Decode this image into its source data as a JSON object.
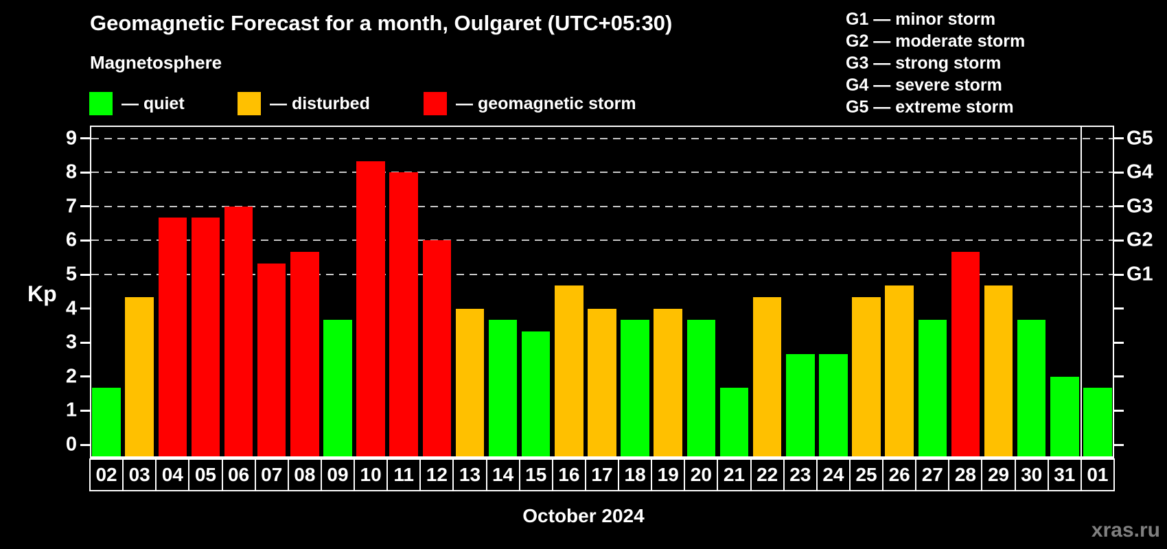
{
  "header": {
    "title": "Geomagnetic Forecast for a month, Oulgaret (UTC+05:30)",
    "subtitle": "Magnetosphere"
  },
  "legend": {
    "items": [
      {
        "key": "quiet",
        "label": "— quiet",
        "color": "#00ff00"
      },
      {
        "key": "disturbed",
        "label": "— disturbed",
        "color": "#ffc000"
      },
      {
        "key": "storm",
        "label": "— geomagnetic storm",
        "color": "#ff0000"
      }
    ]
  },
  "g_legend": [
    "G1 — minor storm",
    "G2 — moderate storm",
    "G3 — strong storm",
    "G4 — severe storm",
    "G5 — extreme storm"
  ],
  "footer": {
    "watermark": "xras.ru"
  },
  "chart_data": {
    "type": "bar",
    "title": "Geomagnetic Forecast for a month, Oulgaret (UTC+05:30)",
    "ylabel": "Kp",
    "xlabel": "October 2024",
    "ylim": [
      0,
      9.35
    ],
    "yticks": [
      0,
      1,
      2,
      3,
      4,
      5,
      6,
      7,
      8,
      9
    ],
    "gridlines_at_kp": [
      5,
      6,
      7,
      8,
      9
    ],
    "grid": "dashed horizontal at storm levels only",
    "legend_position": "top",
    "right_axis": [
      {
        "label": "G1",
        "kp": 5
      },
      {
        "label": "G2",
        "kp": 6
      },
      {
        "label": "G3",
        "kp": 7
      },
      {
        "label": "G4",
        "kp": 8
      },
      {
        "label": "G5",
        "kp": 9
      }
    ],
    "colors": {
      "quiet": "#00ff00",
      "disturbed": "#ffc000",
      "storm": "#ff0000"
    },
    "month_boundary_before_index": 30,
    "days": [
      {
        "day": "02",
        "kp": 1.67,
        "status": "quiet"
      },
      {
        "day": "03",
        "kp": 4.33,
        "status": "disturbed"
      },
      {
        "day": "04",
        "kp": 6.67,
        "status": "storm"
      },
      {
        "day": "05",
        "kp": 6.67,
        "status": "storm"
      },
      {
        "day": "06",
        "kp": 7.0,
        "status": "storm"
      },
      {
        "day": "07",
        "kp": 5.33,
        "status": "storm"
      },
      {
        "day": "08",
        "kp": 5.67,
        "status": "storm"
      },
      {
        "day": "09",
        "kp": 3.67,
        "status": "quiet"
      },
      {
        "day": "10",
        "kp": 8.33,
        "status": "storm"
      },
      {
        "day": "11",
        "kp": 8.0,
        "status": "storm"
      },
      {
        "day": "12",
        "kp": 6.0,
        "status": "storm"
      },
      {
        "day": "13",
        "kp": 4.0,
        "status": "disturbed"
      },
      {
        "day": "14",
        "kp": 3.67,
        "status": "quiet"
      },
      {
        "day": "15",
        "kp": 3.33,
        "status": "quiet"
      },
      {
        "day": "16",
        "kp": 4.67,
        "status": "disturbed"
      },
      {
        "day": "17",
        "kp": 4.0,
        "status": "disturbed"
      },
      {
        "day": "18",
        "kp": 3.67,
        "status": "quiet"
      },
      {
        "day": "19",
        "kp": 4.0,
        "status": "disturbed"
      },
      {
        "day": "20",
        "kp": 3.67,
        "status": "quiet"
      },
      {
        "day": "21",
        "kp": 1.67,
        "status": "quiet"
      },
      {
        "day": "22",
        "kp": 4.33,
        "status": "disturbed"
      },
      {
        "day": "23",
        "kp": 2.67,
        "status": "quiet"
      },
      {
        "day": "24",
        "kp": 2.67,
        "status": "quiet"
      },
      {
        "day": "25",
        "kp": 4.33,
        "status": "disturbed"
      },
      {
        "day": "26",
        "kp": 4.67,
        "status": "disturbed"
      },
      {
        "day": "27",
        "kp": 3.67,
        "status": "quiet"
      },
      {
        "day": "28",
        "kp": 5.67,
        "status": "storm"
      },
      {
        "day": "29",
        "kp": 4.67,
        "status": "disturbed"
      },
      {
        "day": "30",
        "kp": 3.67,
        "status": "quiet"
      },
      {
        "day": "31",
        "kp": 2.0,
        "status": "quiet"
      },
      {
        "day": "01",
        "kp": 1.67,
        "status": "quiet"
      }
    ]
  }
}
